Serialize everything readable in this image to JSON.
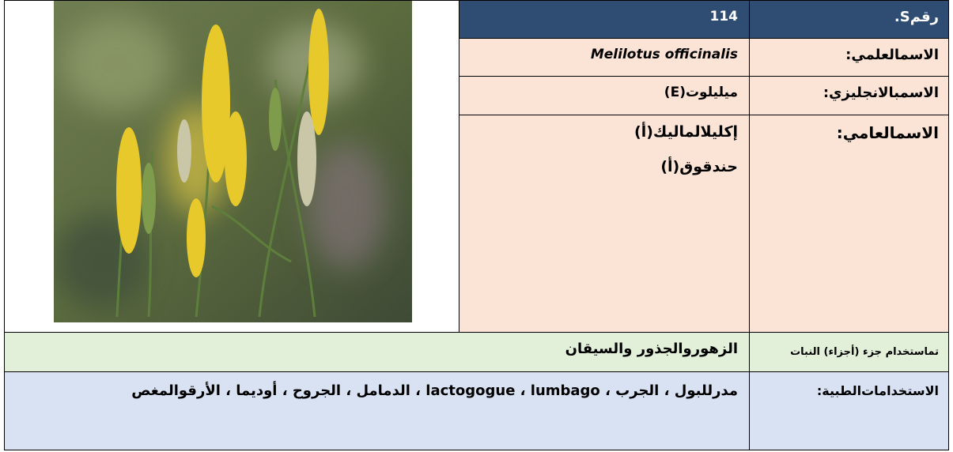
{
  "rows": [
    {
      "label": "رقمS.",
      "value": "114"
    },
    {
      "label": "الاسمالعلمي:",
      "value": "Melilotus officinalis"
    },
    {
      "label": "الاسمبالانجليزي:",
      "value": "ميليلوت(E)"
    },
    {
      "label": "الاسمالعامي:",
      "values": [
        "إكليلالماليك(أ)",
        "حندقوق(أ)"
      ]
    },
    {
      "label": "تماستخدام جزء (أجزاء) النبات",
      "value": "الزهوروالجذور والسيقان"
    },
    {
      "label": "الاستخدامات‌الطبية:",
      "value": "مدرللبول ، الجرب ، lactogogue ، lumbago ، الدمامل ، الجروح ، أوديما ، الأرقوالمغص"
    }
  ]
}
